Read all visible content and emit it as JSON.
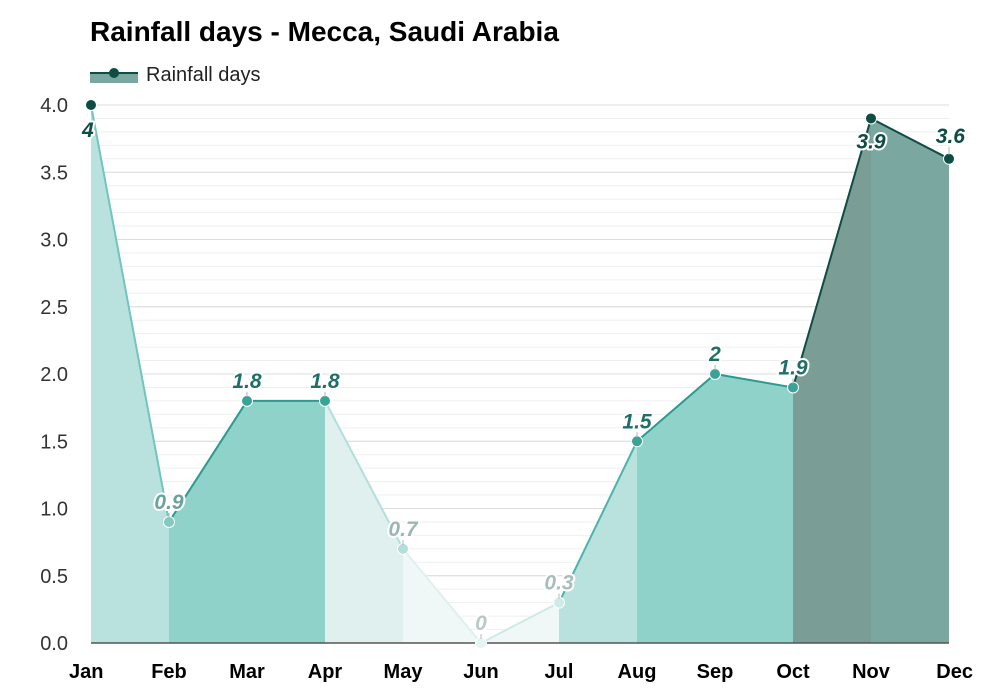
{
  "chart_data": {
    "type": "area",
    "title": "Rainfall days - Mecca, Saudi Arabia",
    "xlabel": "",
    "ylabel": "",
    "categories": [
      "Jan",
      "Feb",
      "Mar",
      "Apr",
      "May",
      "Jun",
      "Jul",
      "Aug",
      "Sep",
      "Oct",
      "Nov",
      "Dec"
    ],
    "series": [
      {
        "name": "Rainfall days",
        "values": [
          4,
          0.9,
          1.8,
          1.8,
          0.7,
          0,
          0.3,
          1.5,
          2,
          1.9,
          3.9,
          3.6
        ],
        "data_labels": [
          "4",
          "0.9",
          "1.8",
          "1.8",
          "0.7",
          "0",
          "0.3",
          "1.5",
          "2",
          "1.9",
          "3.9",
          "3.6"
        ]
      }
    ],
    "ylim": [
      0,
      4
    ],
    "yticks": [
      "0.0",
      "0.5",
      "1.0",
      "1.5",
      "2.0",
      "2.5",
      "3.0",
      "3.5",
      "4.0"
    ],
    "grid": true,
    "legend_placement": "top-left",
    "colors": {
      "month_shades": [
        "#b9e2de",
        "#8ed2c9",
        "#8ed2c9",
        "#dff0ef",
        "#f0f7f7",
        "#f0f7f7",
        "#b9e2de",
        "#8ed2c9",
        "#8ed2c9",
        "#7a9d96",
        "#7aa8a0",
        "#7aa8a0"
      ],
      "segment_lines": [
        "#71c5bd",
        "#2c9a8f",
        "#2c9a8f",
        "#b2dfdb",
        "#e0f0ef",
        "#cfe9e6",
        "#4cb4aa",
        "#2c9a8f",
        "#2c9a8f",
        "#0d4d44",
        "#0d4d44",
        "#0d4d44"
      ],
      "marker_colors": [
        "#0d4d44",
        "#84c9c1",
        "#3aa397",
        "#3aa397",
        "#b2dfdb",
        "#e5f3f2",
        "#cdebe8",
        "#3aa397",
        "#3aa397",
        "#3aa397",
        "#0d4d44",
        "#0d4d44"
      ],
      "label_colors": [
        "#0d4d44",
        "#6aa29c",
        "#1f6f66",
        "#1f6f66",
        "#9ab7b3",
        "#b9c9c7",
        "#a8bebb",
        "#1f6f66",
        "#1f6f66",
        "#1f6f66",
        "#0d4d44",
        "#0d4d44"
      ],
      "legend_fill": "#7aa8a0",
      "legend_line": "#0d4d44"
    }
  }
}
